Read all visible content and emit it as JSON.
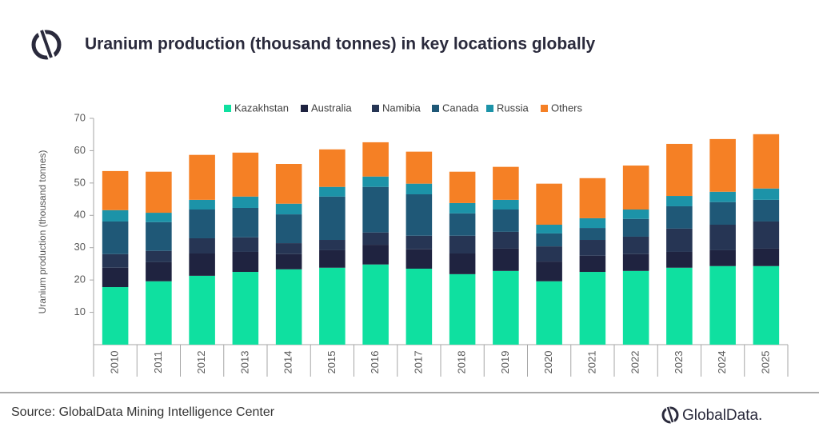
{
  "chart_data": {
    "type": "stacked-bar",
    "title": "Uranium production (thousand tonnes) in key locations globally",
    "y_label": "Uranium production (thousand tonnes)",
    "source": "Source: GlobalData Mining Intelligence Center",
    "brand": "GlobalData.",
    "categories": [
      "2010",
      "2011",
      "2012",
      "2013",
      "2014",
      "2015",
      "2016",
      "2017",
      "2018",
      "2019",
      "2020",
      "2021",
      "2022",
      "2023",
      "2024",
      "2025"
    ],
    "ylim": [
      0,
      70
    ],
    "yticks": [
      10,
      20,
      30,
      40,
      50,
      60,
      70
    ],
    "series": [
      {
        "name": "Kazakhstan",
        "color": "#0fe0a0",
        "values": [
          17.8,
          19.6,
          21.3,
          22.5,
          23.3,
          23.8,
          24.8,
          23.5,
          21.8,
          22.8,
          19.6,
          22.5,
          22.8,
          23.8,
          24.3,
          24.3
        ]
      },
      {
        "name": "Australia",
        "color": "#1f2340",
        "values": [
          6.0,
          5.9,
          6.9,
          6.2,
          4.7,
          5.4,
          6.1,
          6.0,
          6.4,
          6.9,
          6.1,
          5.0,
          5.2,
          4.9,
          4.9,
          5.4
        ]
      },
      {
        "name": "Namibia",
        "color": "#263554",
        "values": [
          4.2,
          3.5,
          4.7,
          4.5,
          3.4,
          3.2,
          3.8,
          4.2,
          5.5,
          5.2,
          4.7,
          4.9,
          5.4,
          7.2,
          7.9,
          8.4
        ]
      },
      {
        "name": "Canada",
        "color": "#1f5877",
        "values": [
          10.1,
          8.9,
          8.9,
          9.1,
          8.9,
          13.4,
          14.1,
          12.8,
          6.9,
          6.9,
          4.0,
          3.7,
          5.5,
          6.9,
          7.0,
          6.7
        ]
      },
      {
        "name": "Russia",
        "color": "#1c93a8",
        "values": [
          3.5,
          2.9,
          3.0,
          3.5,
          3.3,
          3.0,
          3.2,
          3.3,
          3.2,
          3.0,
          2.7,
          3.0,
          2.9,
          3.2,
          3.2,
          3.5
        ]
      },
      {
        "name": "Others",
        "color": "#f58025",
        "values": [
          12.1,
          12.7,
          13.9,
          13.6,
          12.3,
          11.6,
          10.6,
          9.9,
          9.7,
          10.2,
          12.7,
          12.4,
          13.6,
          16.1,
          16.3,
          16.8
        ]
      }
    ]
  }
}
